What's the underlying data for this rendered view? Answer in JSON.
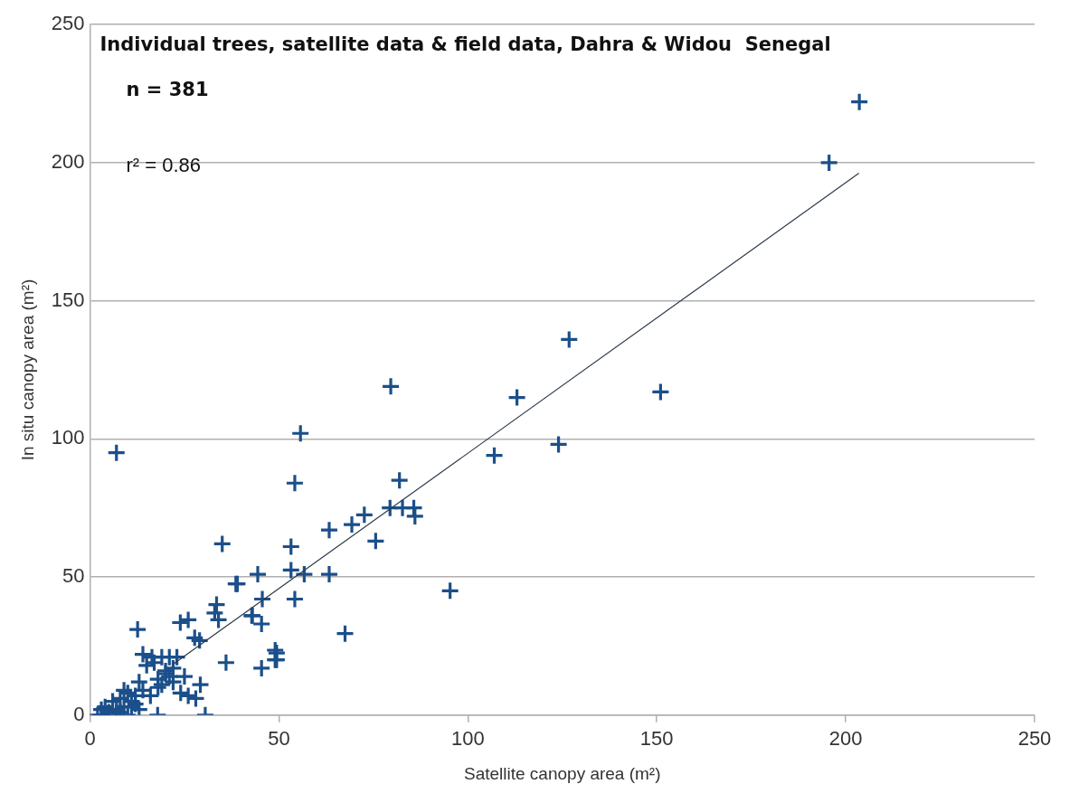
{
  "chart_data": {
    "type": "scatter",
    "title": "Individual trees, satellite data & field data, Dahra & Widou  Senegal",
    "xlabel": "Satellite canopy area (m²)",
    "ylabel": "In situ canopy area (m²)",
    "annotations": [
      "n = 381",
      "r² = 0.86"
    ],
    "xlim": [
      0,
      250
    ],
    "xticks": [
      0,
      50,
      100,
      150,
      200,
      250
    ],
    "ylim": [
      0,
      250
    ],
    "yticks": [
      0,
      50,
      100,
      150,
      200,
      250
    ],
    "grid": "y",
    "legend": false,
    "series": [
      {
        "type": "scatter",
        "marker": "cross",
        "color": "#1b4f8a",
        "x": [
          203.6,
          195.6,
          126.8,
          113,
          151,
          124,
          107,
          79.6,
          55.7,
          54.2,
          81.9,
          79.4,
          82.7,
          85.7,
          86,
          72.6,
          69.3,
          63.3,
          75.6,
          53.2,
          95.3,
          44.4,
          56.7,
          63.3,
          53.2,
          54.2,
          45.6,
          67.5,
          49.4,
          49.4,
          39,
          42.8,
          45.4,
          7,
          35,
          38.6,
          12.6,
          23.9,
          26,
          34,
          33,
          33.5,
          27.7,
          29,
          43,
          36,
          49,
          49,
          45.4,
          30.5,
          29.2,
          16.4,
          19,
          21,
          23,
          17.9,
          20,
          22,
          18,
          24,
          25,
          15,
          13,
          10,
          8,
          6,
          4,
          2,
          3,
          5,
          7,
          9,
          11,
          12,
          14,
          8,
          10,
          6,
          16,
          18,
          20,
          22,
          26,
          28,
          19,
          21,
          17,
          14,
          12,
          9,
          11,
          13,
          7,
          5,
          3
        ],
        "values": [
          222,
          200,
          136,
          115,
          117,
          98,
          94,
          119,
          102,
          84,
          85,
          75,
          75,
          75,
          72,
          72.5,
          69,
          67,
          63,
          61,
          45,
          51,
          51,
          51,
          52.5,
          42,
          42,
          29.5,
          22.5,
          20,
          47.5,
          36,
          33,
          95,
          62,
          47.5,
          31,
          33.5,
          34.5,
          34.5,
          37,
          40,
          28,
          27,
          36,
          19,
          23.5,
          20,
          17,
          0,
          11,
          21,
          21,
          21,
          21,
          0,
          15,
          12,
          10,
          8,
          14,
          18,
          12,
          8,
          6,
          5,
          3,
          0,
          0,
          1,
          2,
          3,
          5,
          7,
          9,
          1,
          0,
          0,
          7,
          13,
          16,
          17,
          7,
          6,
          11,
          14,
          19,
          22,
          4,
          9,
          3,
          2,
          1,
          1,
          2
        ]
      },
      {
        "type": "line",
        "marker": "none",
        "color": "#2b3a4a",
        "x": [
          22,
          203.5
        ],
        "values": [
          18.4,
          196.2
        ]
      }
    ]
  }
}
